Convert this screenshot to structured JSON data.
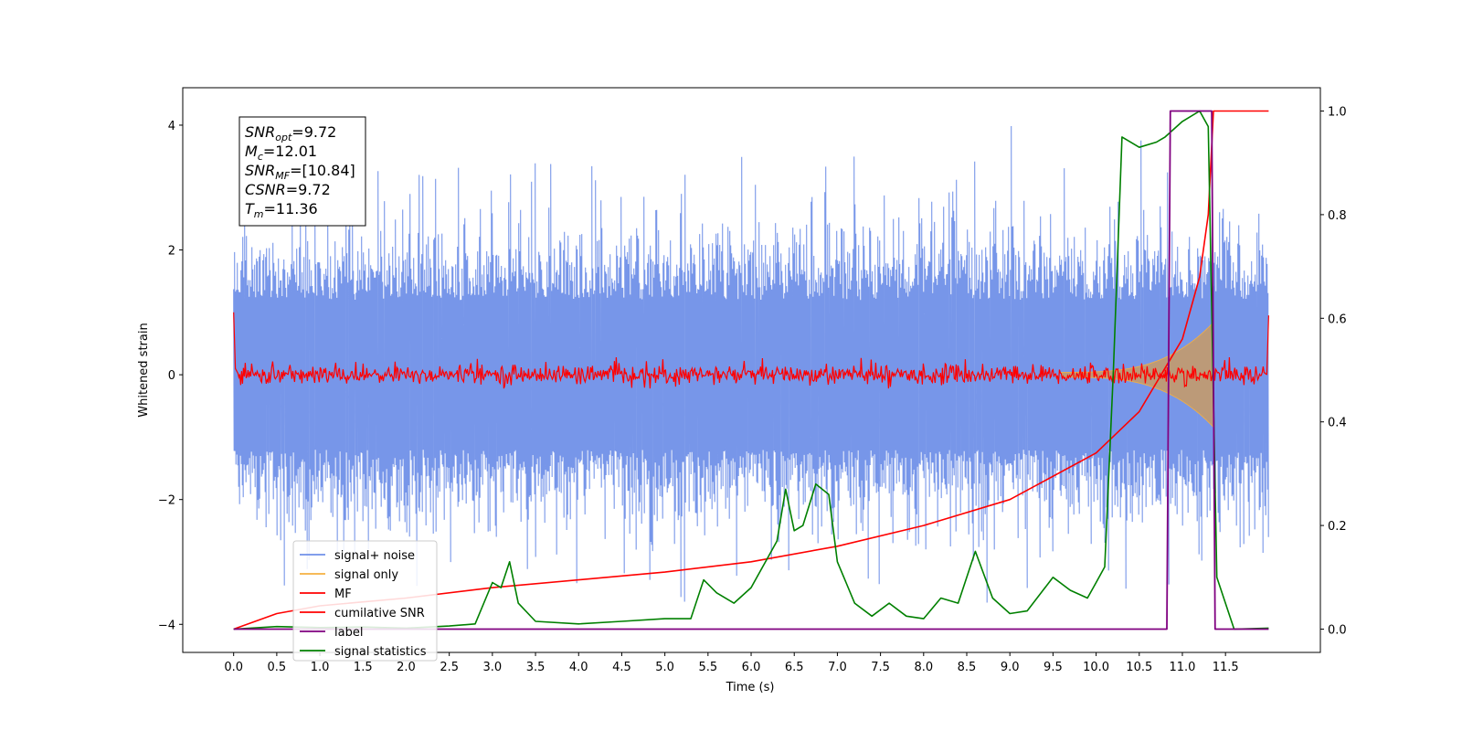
{
  "chart_data": {
    "type": "line",
    "xlabel": "Time (s)",
    "ylabel": "Whitened strain",
    "x_ticks": [
      "0.0",
      "0.5",
      "1.0",
      "1.5",
      "2.0",
      "2.5",
      "3.0",
      "3.5",
      "4.0",
      "4.5",
      "5.0",
      "5.5",
      "6.0",
      "6.5",
      "7.0",
      "7.5",
      "8.0",
      "8.5",
      "9.0",
      "9.5",
      "10.0",
      "10.5",
      "11.0",
      "11.5"
    ],
    "xlim": [
      -0.59,
      12.6
    ],
    "ylim_left": [
      -4.45,
      4.6
    ],
    "y_ticks_left": [
      -4,
      -2,
      0,
      2,
      4
    ],
    "y_tick_labels_left": [
      "−4",
      "−2",
      "0",
      "2",
      "4"
    ],
    "ylim_right": [
      -0.045,
      1.045
    ],
    "y_ticks_right": [
      "0.0",
      "0.2",
      "0.4",
      "0.6",
      "0.8",
      "1.0"
    ],
    "annotation": [
      {
        "sym": "SNR",
        "sub": "opt",
        "val": "=9.72"
      },
      {
        "sym": "M",
        "sub": "c",
        "val": "=12.01"
      },
      {
        "sym": "SNR",
        "sub": "MF",
        "val": "=[10.84]"
      },
      {
        "sym": "CSNR",
        "sub": "",
        "val": "=9.72"
      },
      {
        "sym": "T",
        "sub": "m",
        "val": "=11.36"
      }
    ],
    "legend_position": "lower-left",
    "series": [
      {
        "name": "signal+ noise",
        "color": "#7090e8",
        "axis": "left",
        "description": "noisy whitened strain, amplitude ~±2.5 with spikes to ±4, t = 0–12 s"
      },
      {
        "name": "signal only",
        "color": "#f5b041",
        "axis": "left",
        "description": "chirp with amplitude rising to ~0.8 at t ≈ 11.36 s"
      },
      {
        "name": "MF",
        "color": "#ff0000",
        "axis": "left",
        "description": "matched filter output near 0 with noise ~±0.25, peak ~1 at edges"
      },
      {
        "name": "cumilative SNR",
        "color": "#ff0000",
        "axis": "right",
        "x": [
          0.0,
          0.5,
          1.0,
          2.0,
          3.0,
          4.0,
          5.0,
          6.0,
          7.0,
          8.0,
          9.0,
          10.0,
          10.5,
          11.0,
          11.2,
          11.3,
          11.36,
          11.4,
          12.0
        ],
        "values": [
          0.0,
          0.03,
          0.045,
          0.06,
          0.08,
          0.095,
          0.11,
          0.13,
          0.16,
          0.2,
          0.25,
          0.34,
          0.42,
          0.56,
          0.68,
          0.8,
          1.0,
          1.0,
          1.0
        ]
      },
      {
        "name": "label",
        "color": "#800080",
        "axis": "right",
        "x": [
          0.0,
          10.82,
          10.86,
          11.34,
          11.38,
          12.0
        ],
        "values": [
          0.0,
          0.0,
          1.0,
          1.0,
          0.0,
          0.0
        ]
      },
      {
        "name": "signal statistics",
        "color": "#008000",
        "axis": "right",
        "x": [
          0.0,
          0.5,
          1.0,
          1.5,
          2.0,
          2.5,
          2.8,
          3.0,
          3.1,
          3.2,
          3.3,
          3.5,
          4.0,
          4.5,
          5.0,
          5.3,
          5.45,
          5.6,
          5.8,
          6.0,
          6.2,
          6.3,
          6.4,
          6.5,
          6.6,
          6.75,
          6.9,
          7.0,
          7.1,
          7.2,
          7.4,
          7.6,
          7.8,
          8.0,
          8.2,
          8.4,
          8.6,
          8.8,
          9.0,
          9.2,
          9.5,
          9.7,
          9.9,
          10.0,
          10.1,
          10.2,
          10.3,
          10.5,
          10.7,
          10.8,
          11.0,
          11.2,
          11.3,
          11.4,
          11.6,
          12.0
        ],
        "values": [
          0.0,
          0.005,
          0.003,
          0.004,
          0.002,
          0.006,
          0.01,
          0.09,
          0.08,
          0.13,
          0.05,
          0.015,
          0.01,
          0.015,
          0.02,
          0.02,
          0.095,
          0.07,
          0.05,
          0.08,
          0.14,
          0.17,
          0.27,
          0.19,
          0.2,
          0.28,
          0.26,
          0.13,
          0.09,
          0.05,
          0.025,
          0.05,
          0.025,
          0.02,
          0.06,
          0.05,
          0.15,
          0.06,
          0.03,
          0.035,
          0.1,
          0.075,
          0.06,
          0.09,
          0.12,
          0.5,
          0.95,
          0.93,
          0.94,
          0.95,
          0.98,
          1.0,
          0.97,
          0.1,
          0.0,
          0.002
        ]
      }
    ]
  }
}
